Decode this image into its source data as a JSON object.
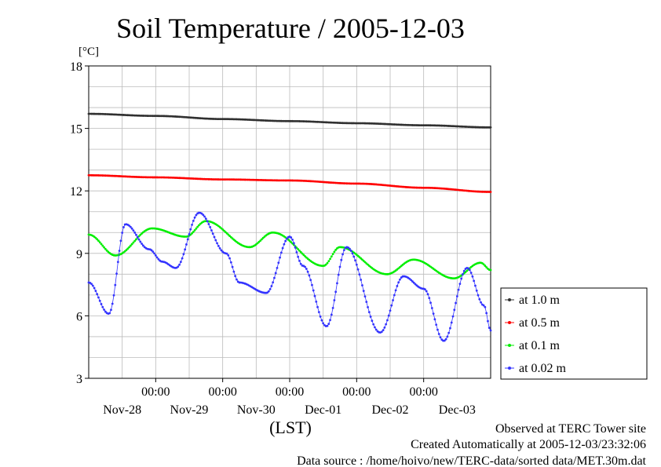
{
  "chart_data": {
    "type": "line",
    "title": "Soil Temperature / 2005-12-03",
    "ylabel": "[°C]",
    "xlabel": "(LST)",
    "ylim": [
      3,
      18
    ],
    "yticks": [
      "3",
      "6",
      "9",
      "12",
      "15",
      "18"
    ],
    "x_tick_time_label": "00:00",
    "x_tick_dates": [
      "Nov-28",
      "Nov-29",
      "Nov-30",
      "Dec-01",
      "Dec-02",
      "Dec-03"
    ],
    "x_range_days": [
      0,
      6
    ],
    "midnight_positions_days": [
      1,
      2,
      3,
      4,
      5
    ],
    "grid": true,
    "legend_position": "right",
    "series": [
      {
        "name": "at 1.0 m",
        "color": "#303030",
        "x": [
          0,
          1,
          2,
          3,
          4,
          5,
          6
        ],
        "y": [
          15.7,
          15.6,
          15.45,
          15.35,
          15.25,
          15.15,
          15.05
        ]
      },
      {
        "name": "at 0.5 m",
        "color": "#ff0000",
        "x": [
          0,
          1,
          2,
          3,
          4,
          5,
          6
        ],
        "y": [
          12.75,
          12.65,
          12.55,
          12.5,
          12.35,
          12.15,
          11.95
        ]
      },
      {
        "name": "at 0.1 m",
        "color": "#00ee00",
        "x": [
          0,
          0.4,
          0.95,
          1.45,
          1.75,
          2.4,
          2.75,
          3.5,
          3.75,
          4.45,
          4.85,
          5.45,
          5.85,
          6
        ],
        "y": [
          9.9,
          8.9,
          10.2,
          9.8,
          10.55,
          9.3,
          10.0,
          8.4,
          9.3,
          8.0,
          8.7,
          7.8,
          8.55,
          8.2
        ]
      },
      {
        "name": "at 0.02 m",
        "color": "#3333ff",
        "x": [
          0,
          0.3,
          0.55,
          0.9,
          1.1,
          1.3,
          1.65,
          2.05,
          2.25,
          2.65,
          3.0,
          3.2,
          3.55,
          3.85,
          4.35,
          4.7,
          5.0,
          5.3,
          5.65,
          5.9,
          6
        ],
        "y": [
          7.6,
          6.1,
          10.4,
          9.2,
          8.6,
          8.3,
          10.95,
          9.0,
          7.6,
          7.1,
          9.8,
          8.4,
          5.5,
          9.3,
          5.2,
          7.9,
          7.3,
          4.8,
          8.3,
          6.5,
          5.3
        ]
      }
    ]
  },
  "footer": {
    "observed": "Observed at TERC Tower site",
    "created": "Created Automatically at 2005-12-03/23:32:06",
    "source": "Data source : /home/hoivo/new/TERC-data/sorted  data/MET.30m.dat"
  }
}
